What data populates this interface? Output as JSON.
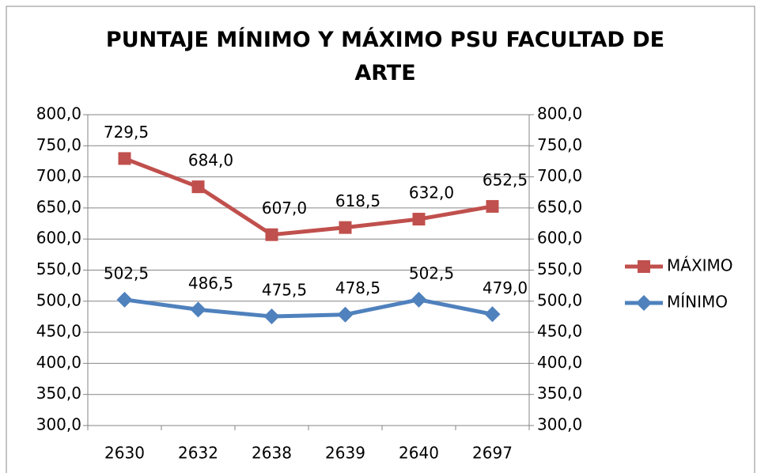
{
  "chart_data": {
    "type": "line",
    "title": "PUNTAJE MÍNIMO Y MÁXIMO PSU FACULTAD DE ARTE",
    "categories": [
      "2630",
      "2632",
      "2638",
      "2639",
      "2640",
      "2697"
    ],
    "series": [
      {
        "name": "MÁXIMO",
        "color": "#c0504d",
        "marker": "square",
        "values": [
          729.5,
          684.0,
          607.0,
          618.5,
          632.0,
          652.5
        ],
        "value_labels": [
          "729,5",
          "684,0",
          "607,0",
          "618,5",
          "632,0",
          "652,5"
        ]
      },
      {
        "name": "MÍNIMO",
        "color": "#4f81bd",
        "marker": "diamond",
        "axis": "y2",
        "values": [
          502.5,
          486.5,
          475.5,
          478.5,
          502.5,
          479.0
        ],
        "value_labels": [
          "502,5",
          "486,5",
          "475,5",
          "478,5",
          "502,5",
          "479,0"
        ]
      }
    ],
    "ylim": [
      300,
      800
    ],
    "yticks": [
      {
        "value": 300,
        "label": "300,0"
      },
      {
        "value": 350,
        "label": "350,0"
      },
      {
        "value": 400,
        "label": "400,0"
      },
      {
        "value": 450,
        "label": "450,0"
      },
      {
        "value": 500,
        "label": "500,0"
      },
      {
        "value": 550,
        "label": "550,0"
      },
      {
        "value": 600,
        "label": "600,0"
      },
      {
        "value": 650,
        "label": "650,0"
      },
      {
        "value": 700,
        "label": "700,0"
      },
      {
        "value": 750,
        "label": "750,0"
      },
      {
        "value": 800,
        "label": "800,0"
      }
    ],
    "y2lim": [
      300,
      800
    ],
    "y2ticks": [
      {
        "value": 300,
        "label": "300,0"
      },
      {
        "value": 350,
        "label": "350,0"
      },
      {
        "value": 400,
        "label": "400,0"
      },
      {
        "value": 450,
        "label": "450,0"
      },
      {
        "value": 500,
        "label": "500,0"
      },
      {
        "value": 550,
        "label": "550,0"
      },
      {
        "value": 600,
        "label": "600,0"
      },
      {
        "value": 650,
        "label": "650,0"
      },
      {
        "value": 700,
        "label": "700,0"
      },
      {
        "value": 750,
        "label": "750,0"
      },
      {
        "value": 800,
        "label": "800,0"
      }
    ],
    "grid": true,
    "legend": "right"
  }
}
